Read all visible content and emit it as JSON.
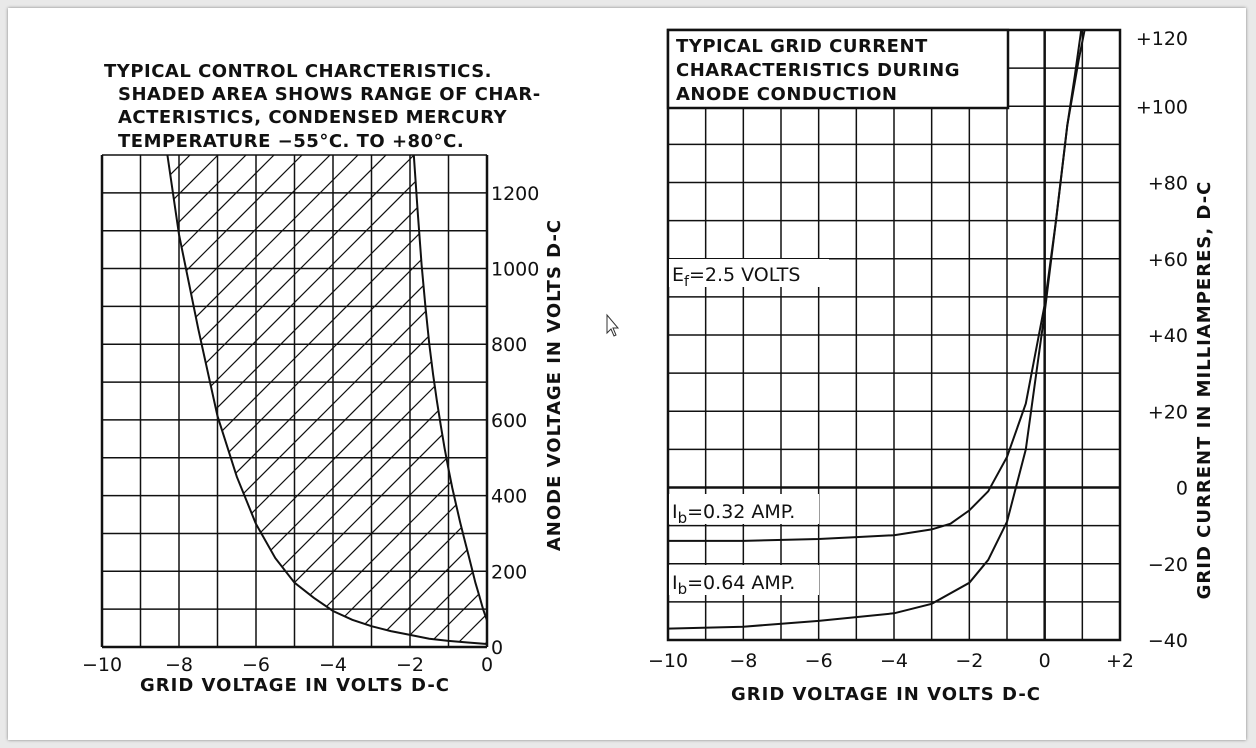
{
  "chart_data": [
    {
      "type": "area",
      "title_lines": [
        "TYPICAL  CONTROL CHARCTERISTICS.",
        "SHADED AREA SHOWS RANGE OF CHAR-",
        "ACTERISTICS, CONDENSED MERCURY",
        "TEMPERATURE  −55°C. TO  +80°C."
      ],
      "xlabel": "GRID VOLTAGE IN VOLTS D-C",
      "ylabel": "ANODE  VOLTAGE  IN  VOLTS  D-C",
      "xlim": [
        -10,
        0
      ],
      "ylim": [
        0,
        1300
      ],
      "x_ticks": [
        -10,
        -8,
        -6,
        -4,
        -2,
        0
      ],
      "x_tick_labels": [
        "−10",
        "−8",
        "−6",
        "−4",
        "−2",
        "0"
      ],
      "y_ticks": [
        0,
        200,
        400,
        600,
        800,
        1000,
        1200
      ],
      "y_tick_labels": [
        "0",
        "200",
        "400",
        "600",
        "800",
        "1000",
        "1200"
      ],
      "grid": true,
      "shaded_region": "between curves (hatched)",
      "series": [
        {
          "x": [
            -8.3,
            -8.0,
            -7.5,
            -7.0,
            -6.5,
            -6.0,
            -5.5,
            -5.0,
            -4.5,
            -4.0,
            -3.5,
            -3.0,
            -2.5,
            -2.0,
            -1.5,
            -1.0,
            -0.5,
            0.0
          ],
          "y": [
            1300,
            1090,
            840,
            610,
            450,
            325,
            235,
            170,
            130,
            95,
            72,
            55,
            42,
            32,
            22,
            16,
            12,
            8
          ]
        },
        {
          "x": [
            -1.9,
            -1.8,
            -1.7,
            -1.6,
            -1.5,
            -1.4,
            -1.3,
            -1.2,
            -1.1,
            -1.0,
            -0.9,
            -0.8,
            -0.7,
            -0.6,
            -0.5,
            -0.4,
            -0.3,
            -0.2,
            -0.1,
            0.0
          ],
          "y": [
            1300,
            1150,
            1010,
            900,
            800,
            720,
            650,
            585,
            525,
            470,
            420,
            375,
            330,
            290,
            250,
            210,
            170,
            135,
            100,
            70
          ]
        }
      ]
    },
    {
      "type": "line",
      "title_lines": [
        "TYPICAL GRID CURRENT",
        "CHARACTERISTICS DURING",
        "ANODE CONDUCTION"
      ],
      "xlabel": "GRID VOLTAGE IN VOLTS D-C",
      "ylabel": "GRID CURRENT IN MILLIAMPERES, D-C",
      "xlim": [
        -10,
        2
      ],
      "ylim": [
        -40,
        120
      ],
      "x_ticks": [
        -10,
        -8,
        -6,
        -4,
        -2,
        0,
        2
      ],
      "x_tick_labels": [
        "−10",
        "−8",
        "−6",
        "−4",
        "−2",
        "0",
        "+2"
      ],
      "y_ticks": [
        -40,
        -20,
        0,
        20,
        40,
        60,
        80,
        100,
        120
      ],
      "y_tick_labels": [
        "−40",
        "−20",
        "0",
        "+20",
        "+40",
        "+60",
        "+80",
        "+100",
        "+120"
      ],
      "grid": true,
      "annotations": [
        "Eₒ=2.5 VOLTS"
      ],
      "ef_label": {
        "main": "E",
        "sub": "f",
        "rest": "=2.5 VOLTS"
      },
      "series": [
        {
          "label_main": "I",
          "label_sub": "b",
          "label_rest": "=0.32 AMP.",
          "x": [
            -10,
            -8,
            -6,
            -5,
            -4,
            -3,
            -2.5,
            -2,
            -1.5,
            -1,
            -0.5,
            0,
            0.3,
            0.6,
            0.8,
            1.0
          ],
          "y": [
            -14,
            -14,
            -13.5,
            -13,
            -12.5,
            -11,
            -9.5,
            -6,
            -1,
            8,
            22,
            48,
            70,
            95,
            108,
            122
          ]
        },
        {
          "label_main": "I",
          "label_sub": "b",
          "label_rest": "=0.64 AMP.",
          "x": [
            -10,
            -8,
            -6,
            -4,
            -3,
            -2,
            -1.5,
            -1,
            -0.5,
            0,
            0.3,
            0.6,
            0.9,
            1.1
          ],
          "y": [
            -37,
            -36.5,
            -35,
            -33,
            -30.5,
            -25,
            -19,
            -9,
            10,
            46,
            70,
            95,
            112,
            122
          ]
        }
      ]
    }
  ]
}
